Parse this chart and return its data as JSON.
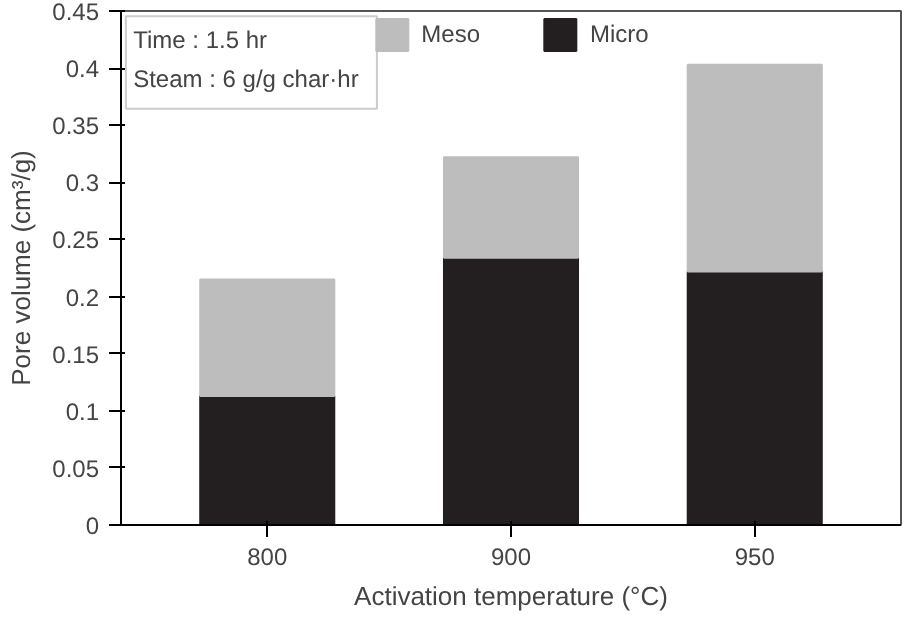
{
  "chart_data": {
    "type": "bar",
    "stacked": true,
    "xlabel": "Activation temperature (°C)",
    "ylabel": "Pore volume (cm³/g)",
    "categories": [
      "800",
      "900",
      "950"
    ],
    "series": [
      {
        "name": "Micro",
        "color": "#231f20",
        "values": [
          0.113,
          0.234,
          0.222
        ]
      },
      {
        "name": "Meso",
        "color": "#bdbdbd",
        "values": [
          0.102,
          0.088,
          0.181
        ]
      }
    ],
    "ylim": [
      0,
      0.45
    ],
    "yticks": [
      0,
      0.05,
      0.1,
      0.15,
      0.2,
      0.25,
      0.3,
      0.35,
      0.4,
      0.45
    ],
    "annotations": [
      "Time : 1.5 hr",
      "Steam : 6 g/g char·hr"
    ],
    "legend": "top",
    "grid": false
  }
}
